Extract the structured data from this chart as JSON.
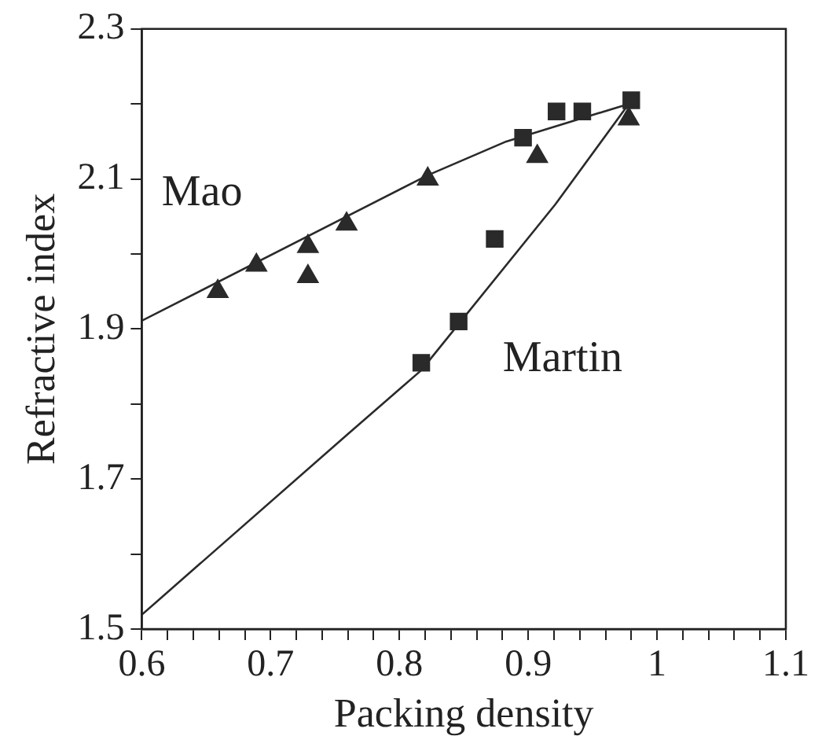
{
  "chart_data": {
    "type": "scatter",
    "xlabel": "Packing density",
    "ylabel": "Refractive index",
    "xlim": [
      0.6,
      1.1
    ],
    "ylim": [
      1.5,
      2.3
    ],
    "xticks": [
      {
        "value": 0.6,
        "label": "0.6"
      },
      {
        "value": 0.62,
        "label": null
      },
      {
        "value": 0.64,
        "label": null
      },
      {
        "value": 0.66,
        "label": null
      },
      {
        "value": 0.68,
        "label": null
      },
      {
        "value": 0.7,
        "label": "0.7"
      },
      {
        "value": 0.72,
        "label": null
      },
      {
        "value": 0.74,
        "label": null
      },
      {
        "value": 0.76,
        "label": null
      },
      {
        "value": 0.78,
        "label": null
      },
      {
        "value": 0.8,
        "label": "0.8"
      },
      {
        "value": 0.82,
        "label": null
      },
      {
        "value": 0.84,
        "label": null
      },
      {
        "value": 0.86,
        "label": null
      },
      {
        "value": 0.88,
        "label": null
      },
      {
        "value": 0.9,
        "label": "0.9"
      },
      {
        "value": 0.92,
        "label": null
      },
      {
        "value": 0.94,
        "label": null
      },
      {
        "value": 0.96,
        "label": null
      },
      {
        "value": 0.98,
        "label": null
      },
      {
        "value": 1,
        "label": "1"
      },
      {
        "value": 1.02,
        "label": null
      },
      {
        "value": 1.04,
        "label": null
      },
      {
        "value": 1.06,
        "label": null
      },
      {
        "value": 1.08,
        "label": null
      },
      {
        "value": 1.1,
        "label": "1.1"
      }
    ],
    "yticks": [
      {
        "value": 1.5,
        "label": "1.5"
      },
      {
        "value": 1.6,
        "label": null
      },
      {
        "value": 1.7,
        "label": "1.7"
      },
      {
        "value": 1.8,
        "label": null
      },
      {
        "value": 1.9,
        "label": "1.9"
      },
      {
        "value": 2.0,
        "label": null
      },
      {
        "value": 2.1,
        "label": "2.1"
      },
      {
        "value": 2.2,
        "label": null
      },
      {
        "value": 2.3,
        "label": "2.3"
      }
    ],
    "grid": false,
    "legend": false,
    "series": [
      {
        "name": "Mao",
        "color": "#2a2a2a",
        "marker": "triangle",
        "x": [
          0.659,
          0.689,
          0.729,
          0.729,
          0.759,
          0.822,
          0.907,
          0.978
        ],
        "values": [
          1.95,
          1.985,
          2.01,
          1.97,
          2.04,
          2.1,
          2.13,
          2.18
        ]
      },
      {
        "name": "Martin",
        "color": "#2a2a2a",
        "marker": "square",
        "x": [
          0.817,
          0.846,
          0.874,
          0.896,
          0.922,
          0.942,
          0.98
        ],
        "values": [
          1.855,
          1.91,
          2.02,
          2.155,
          2.19,
          2.19,
          2.205
        ]
      },
      {
        "type": "line",
        "color": "#2a2a2a",
        "marker": "none",
        "x": [
          0.6,
          0.822,
          0.883,
          0.978
        ],
        "values": [
          1.911,
          2.105,
          2.15,
          2.2
        ]
      },
      {
        "type": "line",
        "color": "#2a2a2a",
        "marker": "none",
        "x": [
          0.6,
          0.76,
          0.817,
          0.921,
          0.978
        ],
        "values": [
          1.519,
          1.76,
          1.845,
          2.066,
          2.2
        ]
      }
    ]
  }
}
